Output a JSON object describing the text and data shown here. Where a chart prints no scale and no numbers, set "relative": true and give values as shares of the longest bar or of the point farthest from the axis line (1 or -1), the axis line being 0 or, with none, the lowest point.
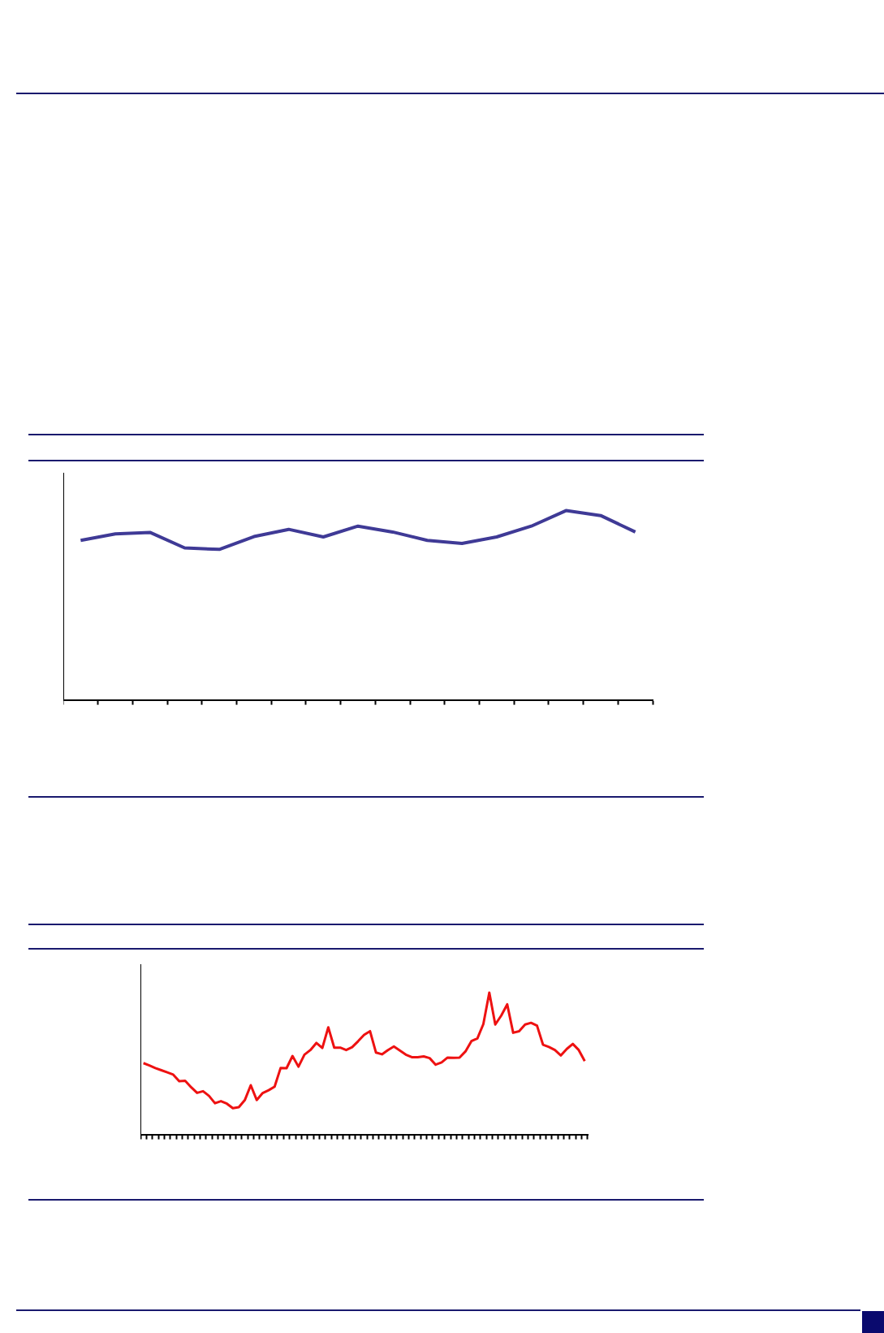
{
  "chart_data": [
    {
      "type": "line",
      "relative": true,
      "grid": false,
      "marker": "none",
      "line_style": "solid",
      "categories": [
        null,
        null,
        null,
        null,
        null,
        null,
        null,
        null,
        null,
        null,
        null,
        null,
        null,
        null,
        null,
        null,
        null
      ],
      "series": [
        {
          "color": "#3f3a96",
          "values": [
            0.843,
            0.877,
            0.885,
            0.803,
            0.795,
            0.863,
            0.901,
            0.861,
            0.918,
            0.887,
            0.843,
            0.827,
            0.861,
            0.918,
            1,
            0.974,
            0.887
          ]
        }
      ]
    },
    {
      "type": "line",
      "relative": true,
      "grid": false,
      "marker": "none",
      "line_style": "solid",
      "categories": [
        null,
        null,
        null,
        null,
        null,
        null,
        null,
        null,
        null,
        null,
        null,
        null,
        null,
        null,
        null,
        null,
        null,
        null,
        null,
        null,
        null,
        null,
        null,
        null,
        null,
        null,
        null,
        null,
        null,
        null,
        null,
        null,
        null,
        null,
        null,
        null,
        null,
        null,
        null,
        null,
        null,
        null,
        null,
        null,
        null,
        null,
        null,
        null,
        null,
        null,
        null,
        null,
        null,
        null,
        null,
        null,
        null,
        null,
        null,
        null,
        null,
        null,
        null,
        null,
        null,
        null,
        null,
        null,
        null,
        null,
        null,
        null,
        null,
        null,
        null
      ],
      "series": [
        {
          "color": "#ee1111",
          "values": [
            0.503,
            0.487,
            0.468,
            0.453,
            0.438,
            0.422,
            0.375,
            0.378,
            0.333,
            0.293,
            0.305,
            0.272,
            0.22,
            0.235,
            0.217,
            0.185,
            0.192,
            0.242,
            0.347,
            0.243,
            0.292,
            0.312,
            0.337,
            0.468,
            0.467,
            0.553,
            0.478,
            0.562,
            0.595,
            0.645,
            0.61,
            0.755,
            0.612,
            0.612,
            0.595,
            0.615,
            0.657,
            0.702,
            0.728,
            0.577,
            0.565,
            0.595,
            0.62,
            0.592,
            0.563,
            0.545,
            0.545,
            0.55,
            0.538,
            0.492,
            0.508,
            0.542,
            0.54,
            0.542,
            0.585,
            0.658,
            0.677,
            0.778,
            1,
            0.775,
            0.838,
            0.917,
            0.717,
            0.728,
            0.775,
            0.787,
            0.767,
            0.633,
            0.617,
            0.595,
            0.557,
            0.603,
            0.638,
            0.595,
            0.517
          ]
        }
      ]
    }
  ]
}
